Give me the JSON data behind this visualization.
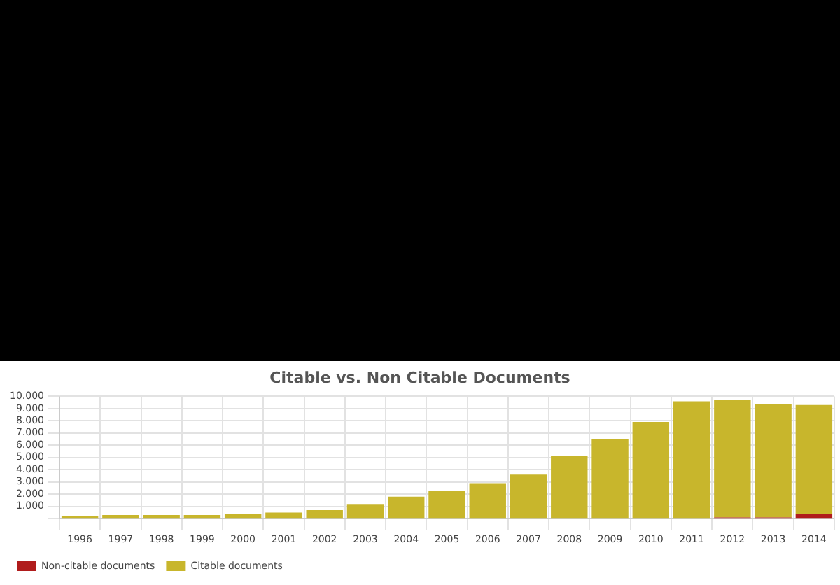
{
  "chart_data": {
    "type": "bar",
    "title": "Citable vs. Non Citable Documents",
    "categories": [
      "1996",
      "1997",
      "1998",
      "1999",
      "2000",
      "2001",
      "2002",
      "2003",
      "2004",
      "2005",
      "2006",
      "2007",
      "2008",
      "2009",
      "2010",
      "2011",
      "2012",
      "2013",
      "2014"
    ],
    "stacked": true,
    "series": [
      {
        "name": "Non-citable documents",
        "color": "#b01c1c",
        "values": [
          0,
          0,
          0,
          0,
          0,
          0,
          0,
          0,
          0,
          0,
          0,
          0,
          0,
          0,
          0,
          0,
          100,
          100,
          400
        ]
      },
      {
        "name": "Citable documents",
        "color": "#c8b62c",
        "values": [
          200,
          300,
          300,
          300,
          400,
          500,
          700,
          1200,
          1800,
          2300,
          2900,
          3600,
          5100,
          6500,
          7900,
          9600,
          9600,
          9300,
          8900
        ]
      }
    ],
    "ylim": [
      0,
      10000
    ],
    "yticks": [
      {
        "value": 0,
        "label": null
      },
      {
        "value": 1000,
        "label": "1.000"
      },
      {
        "value": 2000,
        "label": "2.000"
      },
      {
        "value": 3000,
        "label": "3.000"
      },
      {
        "value": 4000,
        "label": "4.000"
      },
      {
        "value": 5000,
        "label": "5.000"
      },
      {
        "value": 6000,
        "label": "6.000"
      },
      {
        "value": 7000,
        "label": "7.000"
      },
      {
        "value": 8000,
        "label": "8.000"
      },
      {
        "value": 9000,
        "label": "9.000"
      },
      {
        "value": 10000,
        "label": "10.000"
      }
    ],
    "grid": true,
    "legend": "bottom left"
  }
}
